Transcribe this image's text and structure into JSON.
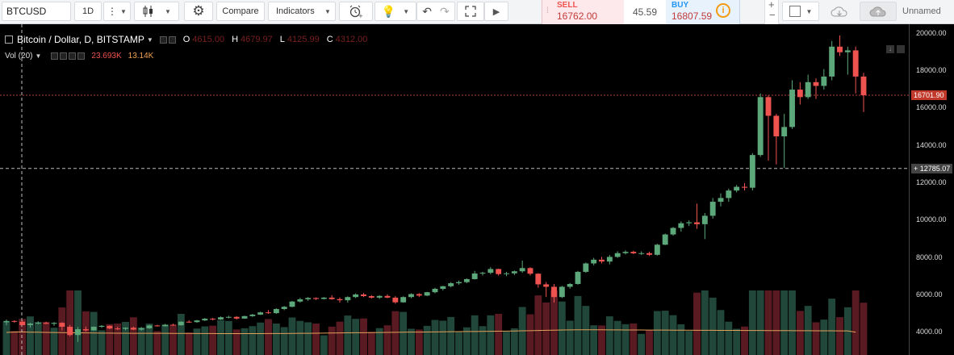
{
  "toolbar": {
    "symbol": "BTCUSD",
    "interval": "1D",
    "compare_label": "Compare",
    "indicators_label": "Indicators",
    "unnamed_label": "Unnamed"
  },
  "trade": {
    "sell_label": "SELL",
    "sell_price": "16762.00",
    "spread": "45.59",
    "buy_label": "BUY",
    "buy_price": "16807.59"
  },
  "legend": {
    "title": "Bitcoin / Dollar, D, BITSTAMP",
    "open_key": "O",
    "open": "4615.00",
    "high_key": "H",
    "high": "4679.97",
    "low_key": "L",
    "low": "4125.99",
    "close_key": "C",
    "close": "4312.00",
    "volume_label": "Vol (20)",
    "volume_value": "23.693K",
    "volume_ma": "13.14K"
  },
  "price_scale": {
    "ticks": [
      "20000.00",
      "18000.00",
      "16000.00",
      "14000.00",
      "12000.00",
      "10000.00",
      "8000.00",
      "6000.00",
      "4000.00"
    ],
    "last_price_tag": "16701.90",
    "crosshair_tag": "12785.07"
  },
  "colors": {
    "up": "#5da87a",
    "down": "#ef5350",
    "volume_up": "#21463a",
    "volume_down": "#5a1a22",
    "ma_line": "#e3a05a",
    "last_price_line": "#b73a3a"
  },
  "chart_data": {
    "type": "candlestick",
    "title": "Bitcoin / Dollar, D, BITSTAMP",
    "y_range": [
      2800,
      20500
    ],
    "candles": [
      [
        4550,
        4700,
        4400,
        4620
      ],
      [
        4620,
        4660,
        4520,
        4580
      ],
      [
        4580,
        4650,
        4380,
        4400
      ],
      [
        4400,
        4520,
        4260,
        4480
      ],
      [
        4480,
        4600,
        4440,
        4520
      ],
      [
        4520,
        4580,
        4450,
        4470
      ],
      [
        4470,
        4560,
        4360,
        4520
      ],
      [
        4520,
        4560,
        4120,
        4312
      ],
      [
        4312,
        4420,
        3800,
        3870
      ],
      [
        3870,
        4300,
        3500,
        4180
      ],
      [
        4180,
        4320,
        4050,
        4120
      ],
      [
        4120,
        4330,
        4100,
        4310
      ],
      [
        4310,
        4400,
        4250,
        4360
      ],
      [
        4360,
        4380,
        4180,
        4220
      ],
      [
        4220,
        4310,
        4140,
        4200
      ],
      [
        4200,
        4280,
        4120,
        4260
      ],
      [
        4260,
        4320,
        4130,
        4160
      ],
      [
        4160,
        4300,
        4100,
        4230
      ],
      [
        4230,
        4420,
        4200,
        4380
      ],
      [
        4380,
        4420,
        4320,
        4340
      ],
      [
        4340,
        4470,
        4320,
        4420
      ],
      [
        4420,
        4480,
        4360,
        4390
      ],
      [
        4390,
        4610,
        4380,
        4580
      ],
      [
        4580,
        4660,
        4520,
        4560
      ],
      [
        4560,
        4680,
        4520,
        4650
      ],
      [
        4650,
        4780,
        4620,
        4740
      ],
      [
        4740,
        4790,
        4650,
        4700
      ],
      [
        4700,
        4860,
        4680,
        4820
      ],
      [
        4820,
        4900,
        4760,
        4840
      ],
      [
        4840,
        4880,
        4700,
        4750
      ],
      [
        4750,
        4900,
        4740,
        4880
      ],
      [
        4880,
        5000,
        4840,
        4960
      ],
      [
        4960,
        5120,
        4940,
        5080
      ],
      [
        5080,
        5200,
        5000,
        5040
      ],
      [
        5040,
        5300,
        5000,
        5260
      ],
      [
        5260,
        5420,
        5200,
        5380
      ],
      [
        5380,
        5700,
        5360,
        5660
      ],
      [
        5660,
        5860,
        5600,
        5780
      ],
      [
        5780,
        5900,
        5700,
        5850
      ],
      [
        5850,
        5880,
        5740,
        5800
      ],
      [
        5800,
        5900,
        5770,
        5870
      ],
      [
        5870,
        6000,
        5760,
        5790
      ],
      [
        5790,
        5880,
        5600,
        5730
      ],
      [
        5730,
        5940,
        5600,
        5900
      ],
      [
        5900,
        6100,
        5850,
        6040
      ],
      [
        6040,
        6120,
        5900,
        5950
      ],
      [
        5950,
        6000,
        5820,
        5870
      ],
      [
        5870,
        6000,
        5800,
        5960
      ],
      [
        5960,
        6050,
        5840,
        5870
      ],
      [
        5870,
        5950,
        5540,
        5620
      ],
      [
        5620,
        5940,
        5600,
        5900
      ],
      [
        5900,
        6100,
        5840,
        6060
      ],
      [
        6060,
        6110,
        5900,
        5980
      ],
      [
        5980,
        6180,
        5950,
        6160
      ],
      [
        6160,
        6400,
        6100,
        6340
      ],
      [
        6340,
        6500,
        6250,
        6480
      ],
      [
        6480,
        6700,
        6420,
        6640
      ],
      [
        6640,
        6780,
        6560,
        6700
      ],
      [
        6700,
        6900,
        6640,
        6860
      ],
      [
        6860,
        7300,
        6840,
        7160
      ],
      [
        7160,
        7250,
        7050,
        7200
      ],
      [
        7200,
        7500,
        7120,
        7400
      ],
      [
        7400,
        7420,
        7050,
        7130
      ],
      [
        7130,
        7240,
        7020,
        7170
      ],
      [
        7170,
        7320,
        7080,
        7280
      ],
      [
        7280,
        7850,
        7200,
        7450
      ],
      [
        7450,
        7500,
        7050,
        7150
      ],
      [
        7150,
        7180,
        6400,
        6580
      ],
      [
        6580,
        6700,
        5900,
        6450
      ],
      [
        6450,
        6600,
        5600,
        5900
      ],
      [
        5900,
        6500,
        5850,
        6450
      ],
      [
        6450,
        6650,
        6350,
        6600
      ],
      [
        6600,
        7300,
        6560,
        7250
      ],
      [
        7250,
        7750,
        7200,
        7700
      ],
      [
        7700,
        8000,
        7600,
        7900
      ],
      [
        7900,
        8050,
        7700,
        7800
      ],
      [
        7800,
        8150,
        7650,
        8050
      ],
      [
        8050,
        8350,
        8000,
        8250
      ],
      [
        8250,
        8400,
        8180,
        8320
      ],
      [
        8320,
        8380,
        8200,
        8240
      ],
      [
        8240,
        8350,
        8150,
        8250
      ],
      [
        8250,
        8330,
        8100,
        8160
      ],
      [
        8160,
        8750,
        8120,
        8700
      ],
      [
        8700,
        9300,
        8680,
        9250
      ],
      [
        9250,
        9650,
        9180,
        9600
      ],
      [
        9600,
        9950,
        9400,
        9850
      ],
      [
        9850,
        10000,
        9700,
        9900
      ],
      [
        9900,
        10900,
        9550,
        9800
      ],
      [
        9800,
        10400,
        9000,
        10250
      ],
      [
        10250,
        11200,
        10100,
        11000
      ],
      [
        11000,
        11450,
        10750,
        11200
      ],
      [
        11200,
        11700,
        11000,
        11600
      ],
      [
        11600,
        11900,
        11500,
        11800
      ],
      [
        11800,
        12000,
        11600,
        11750
      ],
      [
        11750,
        13600,
        11600,
        13500
      ],
      [
        13500,
        16800,
        13400,
        16600
      ],
      [
        16600,
        16700,
        13200,
        15600
      ],
      [
        15600,
        15700,
        13000,
        14500
      ],
      [
        14500,
        15700,
        12800,
        15000
      ],
      [
        15000,
        17500,
        14900,
        17000
      ],
      [
        17000,
        17400,
        16200,
        16600
      ],
      [
        16600,
        17800,
        16500,
        17400
      ],
      [
        17400,
        17600,
        16500,
        17200
      ],
      [
        17200,
        18100,
        17000,
        17700
      ],
      [
        17700,
        19600,
        17500,
        19300
      ],
      [
        19300,
        19900,
        18800,
        19000
      ],
      [
        19000,
        19300,
        17800,
        19100
      ],
      [
        19100,
        19300,
        16800,
        17700
      ],
      [
        17700,
        17900,
        15800,
        16701.9
      ]
    ],
    "volume_ma": [
      13000,
      13200,
      13300,
      13140,
      13100,
      13000,
      12950,
      12900,
      12800,
      12750,
      12700,
      12650,
      12600,
      12580,
      12550,
      12520,
      12500,
      12500,
      12480,
      12450,
      12450,
      12420,
      12400,
      12400,
      12380,
      12350,
      12350,
      12330,
      12320,
      12300,
      12300,
      12310,
      12330,
      12350,
      12360,
      12380,
      12400,
      12450,
      12500,
      12550,
      12600,
      12650,
      12700,
      12750,
      12800,
      12850,
      12900,
      12950,
      13000,
      13050,
      13100,
      13150,
      13200,
      13250,
      13300,
      13350,
      13400,
      13450,
      13500,
      13550,
      13600,
      13650,
      13700,
      13750,
      13800,
      13900,
      14000,
      14100,
      14200,
      14300,
      14400,
      14450,
      14500,
      14500,
      14500,
      14480,
      14460,
      14440,
      14420,
      14400,
      14380,
      14360,
      14340,
      14320,
      14300,
      14280,
      14260,
      14240,
      14220,
      14200,
      14180,
      14160,
      14140,
      14120,
      14100,
      14080,
      14060,
      14040,
      14020,
      14000,
      13980,
      13960,
      13940,
      13920,
      13900,
      13880,
      13860,
      13140
    ]
  }
}
